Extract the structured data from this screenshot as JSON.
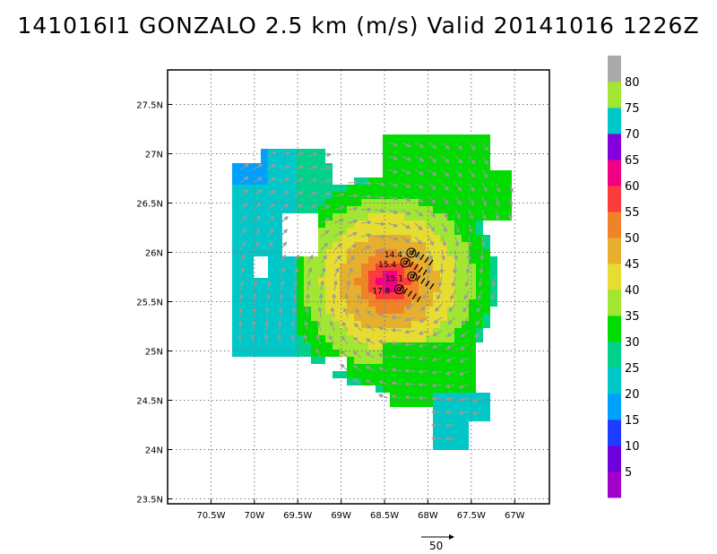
{
  "title": "141016I1 GONZALO 2.5 km (m/s) Valid 20141016  1226Z",
  "map": {
    "lon_range": [
      -71.0,
      -66.6
    ],
    "lat_range": [
      23.45,
      27.85
    ],
    "lon_ticks": [
      {
        "value": -70.5,
        "label": "70.5W"
      },
      {
        "value": -70.0,
        "label": "70W"
      },
      {
        "value": -69.5,
        "label": "69.5W"
      },
      {
        "value": -69.0,
        "label": "69W"
      },
      {
        "value": -68.5,
        "label": "68.5W"
      },
      {
        "value": -68.0,
        "label": "68W"
      },
      {
        "value": -67.5,
        "label": "67.5W"
      },
      {
        "value": -67.0,
        "label": "67W"
      }
    ],
    "lat_ticks": [
      {
        "value": 23.5,
        "label": "23.5N"
      },
      {
        "value": 24.0,
        "label": "24N"
      },
      {
        "value": 24.5,
        "label": "24.5N"
      },
      {
        "value": 25.0,
        "label": "25N"
      },
      {
        "value": 25.5,
        "label": "25.5N"
      },
      {
        "value": 26.0,
        "label": "26N"
      },
      {
        "value": 26.5,
        "label": "26.5N"
      },
      {
        "value": 27.0,
        "label": "27N"
      },
      {
        "value": 27.5,
        "label": "27.5N"
      }
    ],
    "grid": true,
    "storm_center": {
      "lon": -68.45,
      "lat": 25.7
    },
    "observations": [
      {
        "label": "14.4",
        "lon": -68.46,
        "lat": 25.95
      },
      {
        "label": "15.4",
        "lon": -68.53,
        "lat": 25.85
      },
      {
        "label": "15.1",
        "lon": -68.45,
        "lat": 25.71
      },
      {
        "label": "17.8",
        "lon": -68.6,
        "lat": 25.58
      }
    ]
  },
  "colorbar": {
    "levels": [
      "5",
      "10",
      "15",
      "20",
      "25",
      "30",
      "35",
      "40",
      "45",
      "50",
      "55",
      "60",
      "65",
      "70",
      "75",
      "80"
    ],
    "colors": [
      "#a000c8",
      "#6e00dc",
      "#1e3cff",
      "#00a0ff",
      "#00c8c8",
      "#00d28c",
      "#00dc00",
      "#a0e632",
      "#e6dc32",
      "#e6af2d",
      "#f08228",
      "#fa3c3c",
      "#f00082",
      "#8200dc",
      "#00c8c8",
      "#a0e632",
      "#aaaaaa"
    ]
  },
  "reference_vector": {
    "label": "50",
    "value": 50
  }
}
